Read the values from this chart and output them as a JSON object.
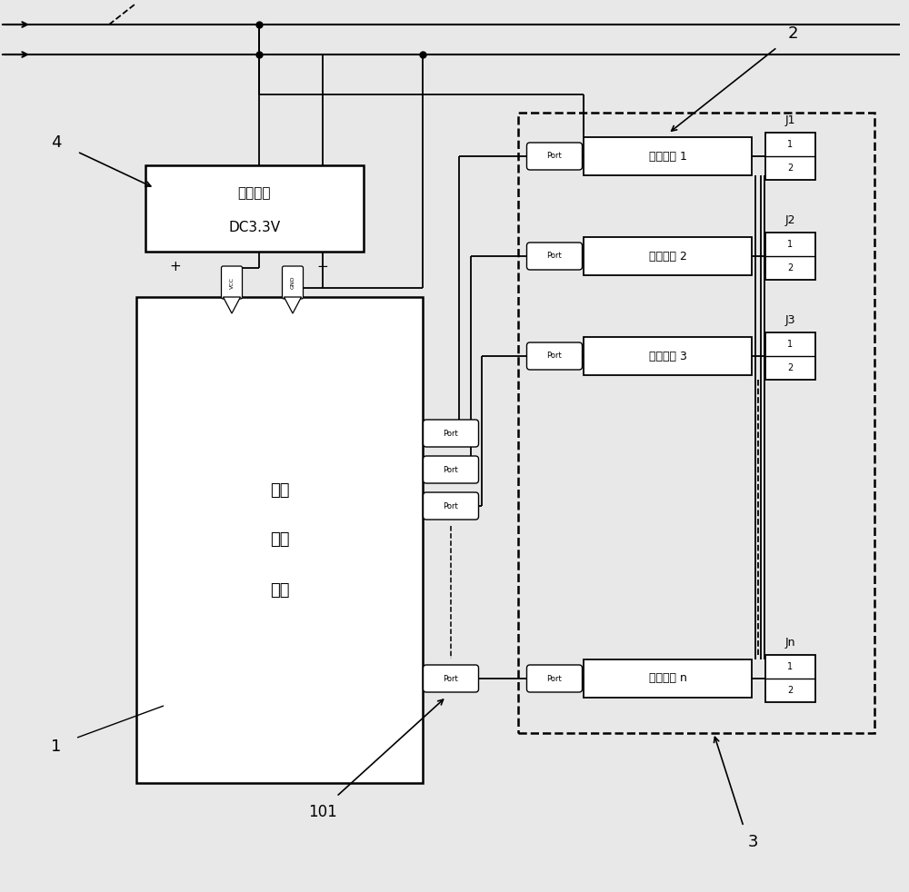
{
  "bg_color": "#e8e8e8",
  "fig_width": 10.0,
  "fig_height": 9.82,
  "power_text1": "电源模块",
  "power_text2": "DC3.3V",
  "ccm_lines": [
    "中央",
    "控制",
    "模块"
  ],
  "exec_labels": [
    "执行模块 1",
    "执行模块 2",
    "执行模块 3",
    "执行模块 n"
  ],
  "jn_labels": [
    "J1",
    "J2",
    "J3",
    "Jn"
  ],
  "label1": "1",
  "label2": "2",
  "label3": "3",
  "label4": "4",
  "label101": "101"
}
